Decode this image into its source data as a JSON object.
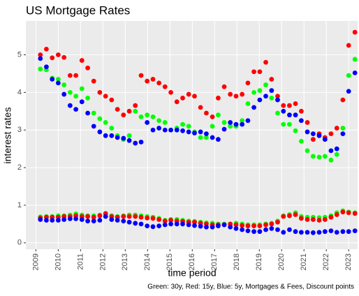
{
  "chart_data": {
    "type": "scatter",
    "title": "US Mortgage Rates",
    "x_label": "time period",
    "y_label": "interest rates",
    "caption": "Green: 30y, Red: 15y, Blue: 5y, Mortgages & Fees, Discount points",
    "xlim": [
      2008.55,
      2023.4
    ],
    "xticks": [
      2009,
      2010,
      2011,
      2012,
      2013,
      2014,
      2015,
      2016,
      2017,
      2018,
      2019,
      2020,
      2021,
      2022,
      2023
    ],
    "ylim": [
      -0.17,
      5.9
    ],
    "yticks": [
      0,
      1,
      2,
      3,
      4,
      5
    ],
    "grid": true,
    "x": [
      2009.2,
      2009.47,
      2009.73,
      2010.0,
      2010.26,
      2010.53,
      2010.79,
      2011.06,
      2011.32,
      2011.59,
      2011.86,
      2012.12,
      2012.39,
      2012.65,
      2012.92,
      2013.18,
      2013.45,
      2013.71,
      2013.98,
      2014.24,
      2014.51,
      2014.78,
      2015.04,
      2015.31,
      2015.57,
      2015.84,
      2016.1,
      2016.37,
      2016.63,
      2016.9,
      2017.16,
      2017.43,
      2017.7,
      2017.96,
      2018.23,
      2018.49,
      2018.76,
      2019.02,
      2019.29,
      2019.55,
      2019.82,
      2020.08,
      2020.35,
      2020.62,
      2020.88,
      2021.15,
      2021.41,
      2021.68,
      2021.94,
      2022.21,
      2022.47,
      2022.74,
      2023.0,
      2023.28
    ],
    "series": [
      {
        "color": "#00ff00",
        "values": [
          4.62,
          4.6,
          4.38,
          4.35,
          4.2,
          4.0,
          3.9,
          4.1,
          3.85,
          3.45,
          3.3,
          3.2,
          3.05,
          2.85,
          2.75,
          2.85,
          3.5,
          3.35,
          3.4,
          3.35,
          3.25,
          3.2,
          3.0,
          3.05,
          3.15,
          3.1,
          2.95,
          2.8,
          2.8,
          3.1,
          3.4,
          3.2,
          3.1,
          3.1,
          3.25,
          3.7,
          4.0,
          4.05,
          4.2,
          3.85,
          3.45,
          3.15,
          3.15,
          2.98,
          2.7,
          2.45,
          2.3,
          2.28,
          2.3,
          2.2,
          2.35,
          3.05,
          4.45,
          4.88
        ]
      },
      {
        "color": "#ff0000",
        "values": [
          5.0,
          5.15,
          4.92,
          5.0,
          4.93,
          4.45,
          4.45,
          4.85,
          4.65,
          4.3,
          4.0,
          3.9,
          3.8,
          3.55,
          3.4,
          3.5,
          3.65,
          4.45,
          4.3,
          4.35,
          4.25,
          4.15,
          4.0,
          3.75,
          3.85,
          3.95,
          3.9,
          3.6,
          3.45,
          3.35,
          3.85,
          4.15,
          3.95,
          3.9,
          3.95,
          4.25,
          4.55,
          4.55,
          4.8,
          4.35,
          3.9,
          3.65,
          3.65,
          3.7,
          3.5,
          3.2,
          2.75,
          2.9,
          2.8,
          2.9,
          3.05,
          3.8,
          5.25,
          5.6
        ]
      },
      {
        "color": "#0000ff",
        "values": [
          4.9,
          4.68,
          4.35,
          4.25,
          3.95,
          3.65,
          3.55,
          3.75,
          3.45,
          3.1,
          2.95,
          2.85,
          2.85,
          2.8,
          2.78,
          2.72,
          2.65,
          2.68,
          3.2,
          3.0,
          3.05,
          3.0,
          3.0,
          3.0,
          2.98,
          2.95,
          2.92,
          2.95,
          2.9,
          2.8,
          2.75,
          3.02,
          3.2,
          3.15,
          3.15,
          3.25,
          3.6,
          3.8,
          3.9,
          4.05,
          3.8,
          3.5,
          3.4,
          3.4,
          3.25,
          2.95,
          2.9,
          2.85,
          2.75,
          2.45,
          2.5,
          2.9,
          4.03,
          4.52
        ]
      },
      {
        "color": "#00ff00",
        "values": [
          0.69,
          0.7,
          0.7,
          0.72,
          0.72,
          0.74,
          0.77,
          0.74,
          0.72,
          0.72,
          0.74,
          0.77,
          0.72,
          0.7,
          0.72,
          0.74,
          0.74,
          0.72,
          0.7,
          0.68,
          0.65,
          0.6,
          0.62,
          0.62,
          0.6,
          0.58,
          0.57,
          0.55,
          0.53,
          0.52,
          0.5,
          0.5,
          0.5,
          0.52,
          0.5,
          0.48,
          0.48,
          0.48,
          0.5,
          0.52,
          0.58,
          0.72,
          0.75,
          0.8,
          0.7,
          0.68,
          0.68,
          0.67,
          0.68,
          0.72,
          0.8,
          0.85,
          0.82,
          0.8
        ]
      },
      {
        "color": "#ff0000",
        "values": [
          0.66,
          0.68,
          0.68,
          0.68,
          0.7,
          0.7,
          0.72,
          0.7,
          0.7,
          0.68,
          0.72,
          0.78,
          0.7,
          0.68,
          0.7,
          0.7,
          0.7,
          0.68,
          0.66,
          0.65,
          0.62,
          0.58,
          0.6,
          0.58,
          0.57,
          0.55,
          0.55,
          0.52,
          0.5,
          0.48,
          0.48,
          0.48,
          0.5,
          0.48,
          0.46,
          0.45,
          0.45,
          0.45,
          0.48,
          0.5,
          0.55,
          0.7,
          0.72,
          0.75,
          0.65,
          0.62,
          0.62,
          0.6,
          0.62,
          0.68,
          0.75,
          0.82,
          0.8,
          0.78
        ]
      },
      {
        "color": "#0000ff",
        "values": [
          0.62,
          0.6,
          0.6,
          0.6,
          0.62,
          0.64,
          0.64,
          0.62,
          0.58,
          0.58,
          0.6,
          0.7,
          0.62,
          0.6,
          0.58,
          0.55,
          0.52,
          0.5,
          0.45,
          0.43,
          0.45,
          0.48,
          0.5,
          0.5,
          0.5,
          0.48,
          0.46,
          0.44,
          0.42,
          0.42,
          0.45,
          0.48,
          0.42,
          0.38,
          0.35,
          0.32,
          0.3,
          0.3,
          0.35,
          0.38,
          0.35,
          0.28,
          0.35,
          0.3,
          0.28,
          0.28,
          0.27,
          0.28,
          0.3,
          0.32,
          0.28,
          0.3,
          0.3,
          0.32
        ]
      }
    ]
  }
}
